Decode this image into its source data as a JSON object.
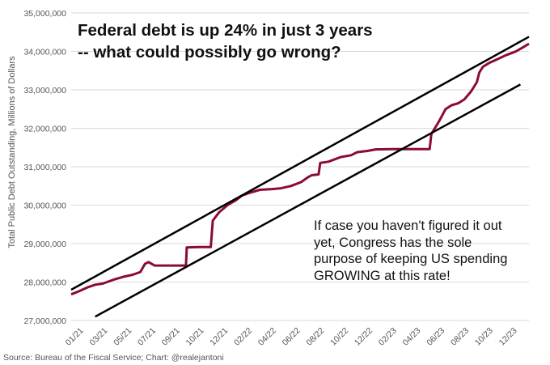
{
  "chart_data": {
    "type": "line",
    "title_lines": [
      "Federal debt is up 24% in just 3 years",
      "-- what could possibly go wrong?"
    ],
    "annotation_lines": [
      "If case you haven't figured it out",
      "yet, Congress has the sole",
      "purpose of keeping US spending",
      "GROWING at this rate!"
    ],
    "ylabel": "Total Public Debt Outstanding, Millions of Dollars",
    "source": "Source: Bureau of the Fiscal Service; Chart: @realejantoni",
    "ylim": [
      27000000,
      35000000
    ],
    "y_ticks": [
      "27,000,000",
      "28,000,000",
      "29,000,000",
      "30,000,000",
      "31,000,000",
      "32,000,000",
      "33,000,000",
      "34,000,000",
      "35,000,000"
    ],
    "x_ticks": [
      "01/21",
      "03/21",
      "05/21",
      "07/21",
      "09/21",
      "10/21",
      "12/21",
      "02/22",
      "04/22",
      "06/22",
      "08/22",
      "10/22",
      "12/22",
      "02/23",
      "04/23",
      "06/23",
      "08/23",
      "10/23",
      "12/23"
    ],
    "x_range": [
      "2021-01-01",
      "2024-01-31"
    ],
    "grid": true,
    "series": [
      {
        "color": "#8b0a3a",
        "points": [
          [
            "2021-01-01",
            27680000
          ],
          [
            "2021-01-20",
            27760000
          ],
          [
            "2021-02-10",
            27860000
          ],
          [
            "2021-03-01",
            27930000
          ],
          [
            "2021-03-20",
            27960000
          ],
          [
            "2021-04-15",
            28060000
          ],
          [
            "2021-05-10",
            28140000
          ],
          [
            "2021-06-01",
            28190000
          ],
          [
            "2021-06-20",
            28260000
          ],
          [
            "2021-07-01",
            28470000
          ],
          [
            "2021-07-10",
            28520000
          ],
          [
            "2021-07-25",
            28430000
          ],
          [
            "2021-08-15",
            28430000
          ],
          [
            "2021-09-15",
            28430000
          ],
          [
            "2021-10-10",
            28430000
          ],
          [
            "2021-10-12",
            28900000
          ],
          [
            "2021-11-10",
            28910000
          ],
          [
            "2021-12-10",
            28910000
          ],
          [
            "2021-12-15",
            29600000
          ],
          [
            "2021-12-31",
            29820000
          ],
          [
            "2022-01-20",
            30000000
          ],
          [
            "2022-02-10",
            30130000
          ],
          [
            "2022-02-25",
            30250000
          ],
          [
            "2022-03-15",
            30320000
          ],
          [
            "2022-04-10",
            30400000
          ],
          [
            "2022-05-10",
            30420000
          ],
          [
            "2022-06-01",
            30440000
          ],
          [
            "2022-06-25",
            30500000
          ],
          [
            "2022-07-20",
            30600000
          ],
          [
            "2022-08-05",
            30720000
          ],
          [
            "2022-08-15",
            30780000
          ],
          [
            "2022-09-01",
            30800000
          ],
          [
            "2022-09-05",
            31100000
          ],
          [
            "2022-09-25",
            31130000
          ],
          [
            "2022-10-25",
            31250000
          ],
          [
            "2022-11-20",
            31300000
          ],
          [
            "2022-12-05",
            31380000
          ],
          [
            "2022-12-30",
            31410000
          ],
          [
            "2023-01-19",
            31450000
          ],
          [
            "2023-03-01",
            31460000
          ],
          [
            "2023-05-01",
            31460000
          ],
          [
            "2023-06-01",
            31460000
          ],
          [
            "2023-06-05",
            31850000
          ],
          [
            "2023-06-25",
            32200000
          ],
          [
            "2023-07-10",
            32500000
          ],
          [
            "2023-07-25",
            32600000
          ],
          [
            "2023-08-10",
            32650000
          ],
          [
            "2023-08-25",
            32750000
          ],
          [
            "2023-09-10",
            32950000
          ],
          [
            "2023-09-25",
            33200000
          ],
          [
            "2023-10-01",
            33450000
          ],
          [
            "2023-10-10",
            33600000
          ],
          [
            "2023-10-25",
            33700000
          ],
          [
            "2023-11-15",
            33800000
          ],
          [
            "2023-12-05",
            33900000
          ],
          [
            "2023-12-30",
            34000000
          ],
          [
            "2024-01-15",
            34100000
          ],
          [
            "2024-01-31",
            34200000
          ]
        ]
      }
    ],
    "trend_lines": [
      {
        "color": "#000000",
        "from": [
          "2021-01-01",
          27800000
        ],
        "to": [
          "2024-01-31",
          34380000
        ]
      },
      {
        "color": "#000000",
        "from": [
          "2021-03-01",
          27100000
        ],
        "to": [
          "2024-01-10",
          33140000
        ]
      }
    ]
  }
}
